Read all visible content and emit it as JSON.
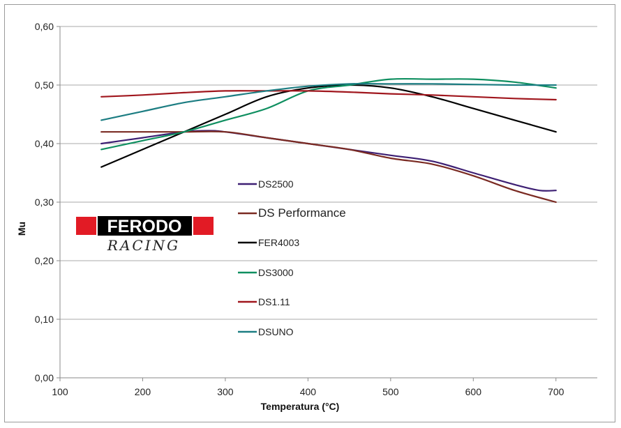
{
  "chart_data": {
    "type": "line",
    "xlabel": "Temperatura (°C)",
    "ylabel": "Mu",
    "xlim": [
      100,
      750
    ],
    "ylim": [
      0,
      0.6
    ],
    "x_ticks": [
      100,
      200,
      300,
      400,
      500,
      600,
      700
    ],
    "x_tick_labels": [
      "100",
      "200",
      "300",
      "400",
      "500",
      "600",
      "700"
    ],
    "y_ticks": [
      0,
      0.1,
      0.2,
      0.3,
      0.4,
      0.5,
      0.6
    ],
    "y_tick_labels": [
      "0,00",
      "0,10",
      "0,20",
      "0,30",
      "0,40",
      "0,50",
      "0,60"
    ],
    "grid": "horizontal",
    "legend_position": "center",
    "series": [
      {
        "name": "DS2500",
        "color": "#3d1f73",
        "x": [
          150,
          200,
          250,
          280,
          300,
          350,
          400,
          450,
          500,
          550,
          600,
          650,
          680,
          700
        ],
        "y": [
          0.4,
          0.41,
          0.42,
          0.422,
          0.42,
          0.41,
          0.4,
          0.39,
          0.38,
          0.37,
          0.35,
          0.33,
          0.32,
          0.32
        ]
      },
      {
        "name": "DS Performance",
        "color": "#7a2a22",
        "x": [
          150,
          200,
          250,
          300,
          350,
          400,
          450,
          500,
          550,
          600,
          650,
          700
        ],
        "y": [
          0.42,
          0.42,
          0.42,
          0.42,
          0.41,
          0.4,
          0.39,
          0.375,
          0.365,
          0.345,
          0.32,
          0.3
        ]
      },
      {
        "name": "FER4003",
        "color": "#000000",
        "x": [
          150,
          200,
          250,
          300,
          350,
          400,
          450,
          500,
          550,
          600,
          650,
          700
        ],
        "y": [
          0.36,
          0.39,
          0.42,
          0.45,
          0.48,
          0.495,
          0.5,
          0.495,
          0.48,
          0.46,
          0.44,
          0.42
        ]
      },
      {
        "name": "DS3000",
        "color": "#0f8f60",
        "x": [
          150,
          200,
          250,
          300,
          350,
          400,
          450,
          500,
          550,
          600,
          650,
          700
        ],
        "y": [
          0.39,
          0.405,
          0.42,
          0.44,
          0.46,
          0.49,
          0.5,
          0.51,
          0.51,
          0.51,
          0.505,
          0.495
        ]
      },
      {
        "name": "DS1.11",
        "color": "#a0161d",
        "x": [
          150,
          200,
          250,
          300,
          350,
          400,
          450,
          500,
          550,
          600,
          650,
          700
        ],
        "y": [
          0.48,
          0.483,
          0.487,
          0.49,
          0.49,
          0.49,
          0.488,
          0.485,
          0.483,
          0.48,
          0.477,
          0.475
        ]
      },
      {
        "name": "DSUNO",
        "color": "#1c7d82",
        "x": [
          150,
          200,
          250,
          300,
          350,
          400,
          450,
          500,
          550,
          600,
          650,
          700
        ],
        "y": [
          0.44,
          0.455,
          0.47,
          0.48,
          0.49,
          0.498,
          0.502,
          0.502,
          0.502,
          0.501,
          0.5,
          0.5
        ]
      }
    ]
  },
  "logo": {
    "brand": "FERODO",
    "subtitle": "RACING",
    "primary_color": "#e21b25",
    "secondary_color": "#000000"
  }
}
